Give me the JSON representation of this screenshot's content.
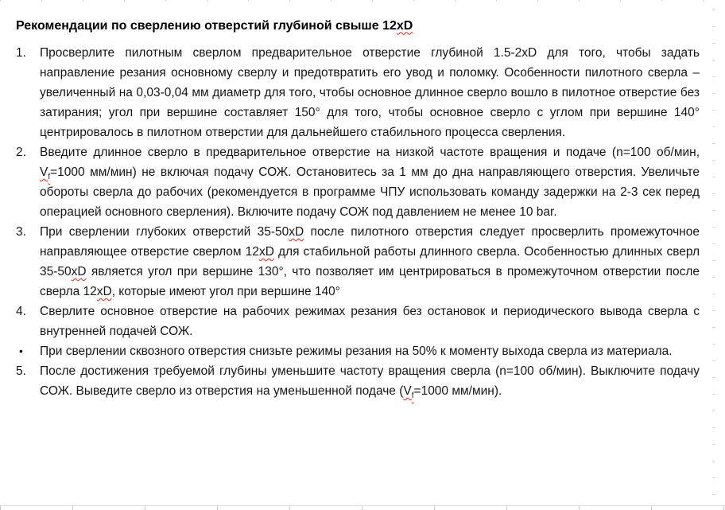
{
  "colors": {
    "page_background": "#ffffff",
    "text": "#161616",
    "title_text": "#000000",
    "spellcheck_squiggle": "#ff1a0d",
    "edge_tick": "#d9d9d9"
  },
  "title": {
    "plain_text": "Рекомендации по сверлению отверстий глубиной свыше 12xD",
    "segments": [
      {
        "t": "Рекомендации по сверлению отверстий глубиной свыше 12"
      },
      {
        "t": "xD",
        "spell": true
      }
    ]
  },
  "items": [
    {
      "marker": "1.",
      "segments": [
        {
          "t": "Просверлите пилотным сверлом предварительное отверстие глубиной 1.5-2xD для того, чтобы задать направление резания основному сверлу и предотвратить его увод и поломку. Особенности пилотного сверла – увеличенный на 0,03-0,04 мм диаметр для того, чтобы основное длинное сверло вошло в пилотное отверстие без затирания; угол при вершине составляет 150° для того, чтобы основное сверло с углом при вершине 140° центрировалось в пилотном отверстии для дальнейшего стабильного процесса сверления."
        }
      ]
    },
    {
      "marker": "2.",
      "segments": [
        {
          "t": "Введите длинное сверло в предварительное отверстие на низкой частоте вращения и подаче (n=100 об/мин, "
        },
        {
          "t": "V",
          "spell": true
        },
        {
          "t": "f",
          "spell": true,
          "sub": true
        },
        {
          "t": "=1000 мм/мин) не включая подачу СОЖ. Остановитесь за 1 мм до дна направляющего отверстия. Увеличьте обороты сверла до рабочих (рекомендуется в программе ЧПУ использовать команду задержки на 2-3 сек перед операцией основного сверления). Включите подачу СОЖ под давлением не менее 10 bar."
        }
      ]
    },
    {
      "marker": "3.",
      "segments": [
        {
          "t": "При сверлении глубоких отверстий 35-50"
        },
        {
          "t": "xD",
          "spell": true
        },
        {
          "t": " после пилотного отверстия следует просверлить промежуточное направляющее отверстие сверлом 12"
        },
        {
          "t": "xD",
          "spell": true
        },
        {
          "t": " для стабильной работы длинного сверла. Особенностью длинных сверл 35-50"
        },
        {
          "t": "xD",
          "spell": true
        },
        {
          "t": " является угол при вершине 130°, что позволяет им центрироваться в промежуточном отверстии после сверла 12"
        },
        {
          "t": "xD",
          "spell": true
        },
        {
          "t": ", которые имеют угол при вершине 140°"
        }
      ]
    },
    {
      "marker": "4.",
      "segments": [
        {
          "t": "Сверлите основное отверстие на рабочих режимах резания без остановок и периодического вывода сверла с внутренней подачей СОЖ."
        }
      ]
    },
    {
      "marker": "•",
      "bullet": true,
      "segments": [
        {
          "t": "При сверлении сквозного отверстия снизьте режимы резания на 50% к моменту выхода сверла из материала."
        }
      ]
    },
    {
      "marker": "5.",
      "segments": [
        {
          "t": "После достижения требуемой глубины уменьшите частоту вращения сверла (n=100 об/мин). Выключите подачу СОЖ. Выведите сверло из отверстия на уменьшенной подаче ("
        },
        {
          "t": "V",
          "spell": true
        },
        {
          "t": "f",
          "spell": true,
          "sub": true
        },
        {
          "t": "=1000 мм/мин)."
        }
      ]
    }
  ]
}
